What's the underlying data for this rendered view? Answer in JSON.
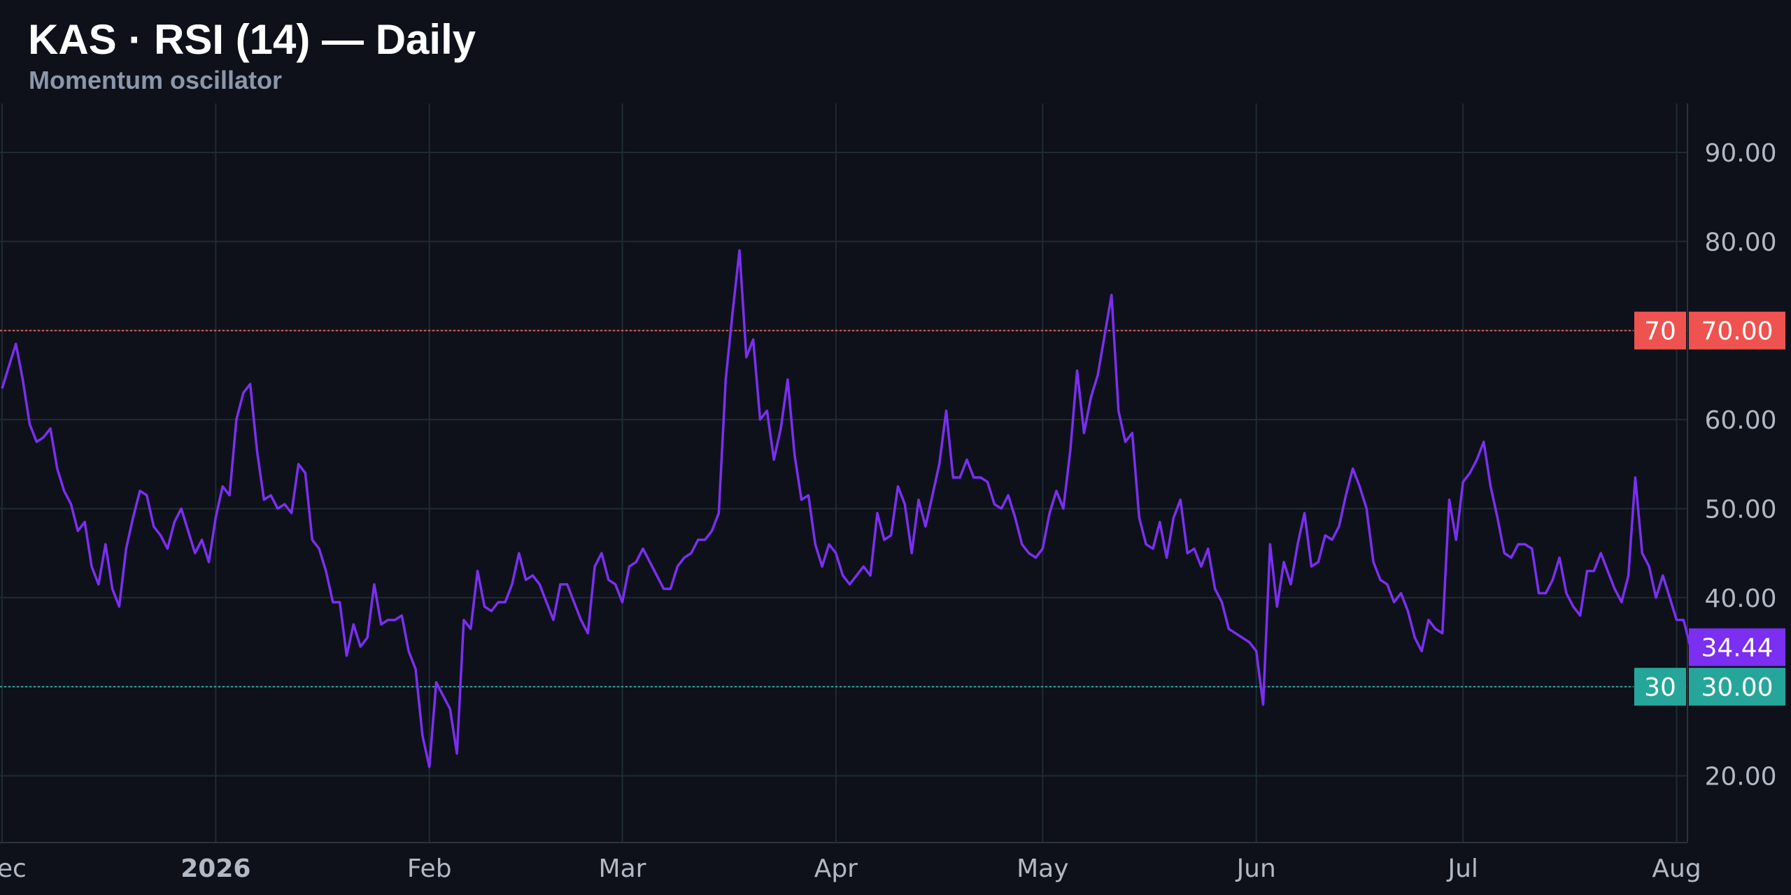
{
  "header": {
    "title": "KAS · RSI (14) — Daily",
    "subtitle": "Momentum oscillator"
  },
  "colors": {
    "background": "#0e111a",
    "grid": "#1f2b33",
    "line": "#7b2ff0",
    "overbought": "#ef5350",
    "oversold": "#26a69a",
    "axis_text": "#b2b9c4"
  },
  "chart_data": {
    "type": "line",
    "title": "KAS · RSI (14) — Daily",
    "subtitle": "Momentum oscillator",
    "xlabel": "",
    "ylabel": "",
    "ylim": [
      12.5,
      95.5
    ],
    "grid": true,
    "x_tick_labels": [
      "Dec",
      "2026",
      "Feb",
      "Mar",
      "Apr",
      "May",
      "Jun",
      "Jul",
      "Aug"
    ],
    "y_tick_labels": [
      "90.00",
      "80.00",
      "70.00",
      "60.00",
      "50.00",
      "40.00",
      "30.00",
      "20.00"
    ],
    "y_ticks": [
      90,
      80,
      70,
      60,
      50,
      40,
      30,
      20
    ],
    "bold_x_tick": "2026",
    "levels": [
      {
        "name": "overbought",
        "value": 70,
        "tag": "70",
        "label": "70.00"
      },
      {
        "name": "oversold",
        "value": 30,
        "tag": "30",
        "label": "30.00"
      }
    ],
    "last_value_label": "34.44",
    "series": [
      {
        "x_start": "2025-12-01",
        "values": [
          63.5,
          66.0,
          68.5,
          64.5,
          59.5,
          57.5,
          58.0,
          59.0,
          54.5,
          52.0,
          50.5,
          47.5,
          48.5,
          43.5,
          41.5,
          46.0,
          41.0,
          39.0,
          45.5,
          49.0,
          52.0,
          51.5,
          48.0,
          47.0,
          45.5,
          48.5,
          50.0,
          47.5,
          45.0,
          46.5,
          44.0,
          49.0,
          52.5,
          51.5,
          60.0,
          63.0,
          64.0,
          56.5,
          51.0,
          51.5,
          50.0,
          50.5,
          49.5,
          55.0,
          54.0,
          46.5,
          45.5,
          43.0,
          39.5,
          39.5,
          33.5,
          37.0,
          34.5,
          35.5,
          41.5,
          37.0,
          37.5,
          37.5,
          38.0,
          34.0,
          32.0,
          24.5,
          21.0,
          30.5,
          29.0,
          27.5,
          22.5,
          37.5,
          36.5,
          43.0,
          39.0,
          38.5,
          39.5,
          39.5,
          41.5,
          45.0,
          42.0,
          42.5,
          41.5,
          39.5,
          37.5,
          41.5,
          41.5,
          39.5,
          37.5,
          36.0,
          43.5,
          45.0,
          42.0,
          41.5,
          39.5,
          43.5,
          44.0,
          45.5,
          44.0,
          42.5,
          41.0,
          41.0,
          43.5,
          44.5,
          45.0,
          46.5,
          46.5,
          47.5,
          49.5,
          64.5,
          72.0,
          79.0,
          67.0,
          69.0,
          60.0,
          61.0,
          55.5,
          59.0,
          64.5,
          56.0,
          51.0,
          51.5,
          46.0,
          43.5,
          46.0,
          45.0,
          42.5,
          41.5,
          42.5,
          43.5,
          42.5,
          49.5,
          46.5,
          47.0,
          52.5,
          50.5,
          45.0,
          51.0,
          48.0,
          51.5,
          55.0,
          61.0,
          53.5,
          53.5,
          55.5,
          53.5,
          53.5,
          53.0,
          50.5,
          50.0,
          51.5,
          49.0,
          46.0,
          45.0,
          44.5,
          45.5,
          49.5,
          52.0,
          50.0,
          56.5,
          65.5,
          58.5,
          62.5,
          65.0,
          69.5,
          74.0,
          61.0,
          57.5,
          58.5,
          49.0,
          46.0,
          45.5,
          48.5,
          44.5,
          49.0,
          51.0,
          45.0,
          45.5,
          43.5,
          45.5,
          41.0,
          39.5,
          36.5,
          36.0,
          35.5,
          35.0,
          34.0,
          28.0,
          46.0,
          39.0,
          44.0,
          41.5,
          46.0,
          49.5,
          43.5,
          44.0,
          47.0,
          46.5,
          48.0,
          51.5,
          54.5,
          52.5,
          50.0,
          44.0,
          42.0,
          41.5,
          39.5,
          40.5,
          38.5,
          35.5,
          34.0,
          37.5,
          36.5,
          36.0,
          51.0,
          46.5,
          53.0,
          54.0,
          55.5,
          57.5,
          52.5,
          49.0,
          45.0,
          44.5,
          46.0,
          46.0,
          45.5,
          40.5,
          40.5,
          42.0,
          44.5,
          40.5,
          39.0,
          38.0,
          43.0,
          43.0,
          45.0,
          43.0,
          41.0,
          39.5,
          42.5,
          53.5,
          45.0,
          43.5,
          40.0,
          42.5,
          40.0,
          37.5,
          37.5,
          34.44
        ]
      }
    ]
  }
}
